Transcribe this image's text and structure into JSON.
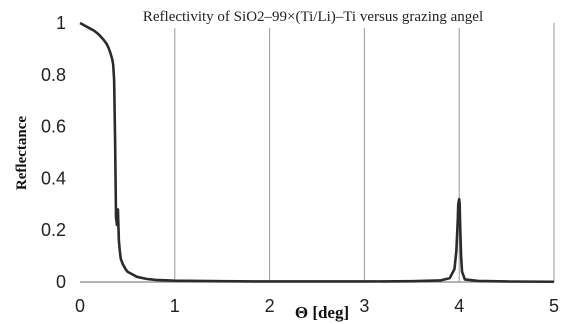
{
  "chart_data": {
    "type": "line",
    "title": "Reflectivity of SiO2–99×(Ti/Li)–Ti versus grazing angel",
    "xlabel": "Θ [deg]",
    "ylabel": "Reflectance",
    "xlim": [
      0,
      5
    ],
    "ylim": [
      0,
      1
    ],
    "xticks": [
      "0",
      "1",
      "2",
      "3",
      "4",
      "5"
    ],
    "yticks": [
      "0",
      "0.2",
      "0.4",
      "0.6",
      "0.8",
      "1"
    ],
    "grid": "vertical",
    "line_color": "#2b2b2b",
    "series": [
      {
        "x": [
          0,
          0.05,
          0.1,
          0.15,
          0.2,
          0.25,
          0.28,
          0.3,
          0.32,
          0.34,
          0.35,
          0.36,
          0.37,
          0.38,
          0.39,
          0.4,
          0.41,
          0.42,
          0.43,
          0.45,
          0.48,
          0.5,
          0.55,
          0.6,
          0.7,
          0.8,
          1.0,
          1.5,
          2.0,
          2.5,
          3.0,
          3.5,
          3.8,
          3.9,
          3.95,
          3.97,
          3.985,
          3.99,
          4.0,
          4.005,
          4.01,
          4.02,
          4.03,
          4.06,
          4.2,
          4.5,
          5.0
        ],
        "y": [
          1.0,
          0.99,
          0.98,
          0.97,
          0.955,
          0.935,
          0.92,
          0.905,
          0.885,
          0.86,
          0.84,
          0.78,
          0.55,
          0.25,
          0.22,
          0.28,
          0.16,
          0.12,
          0.09,
          0.07,
          0.05,
          0.04,
          0.03,
          0.02,
          0.012,
          0.008,
          0.005,
          0.003,
          0.002,
          0.002,
          0.002,
          0.003,
          0.006,
          0.015,
          0.05,
          0.12,
          0.24,
          0.3,
          0.32,
          0.3,
          0.22,
          0.1,
          0.04,
          0.01,
          0.004,
          0.002,
          0.001
        ]
      }
    ]
  }
}
